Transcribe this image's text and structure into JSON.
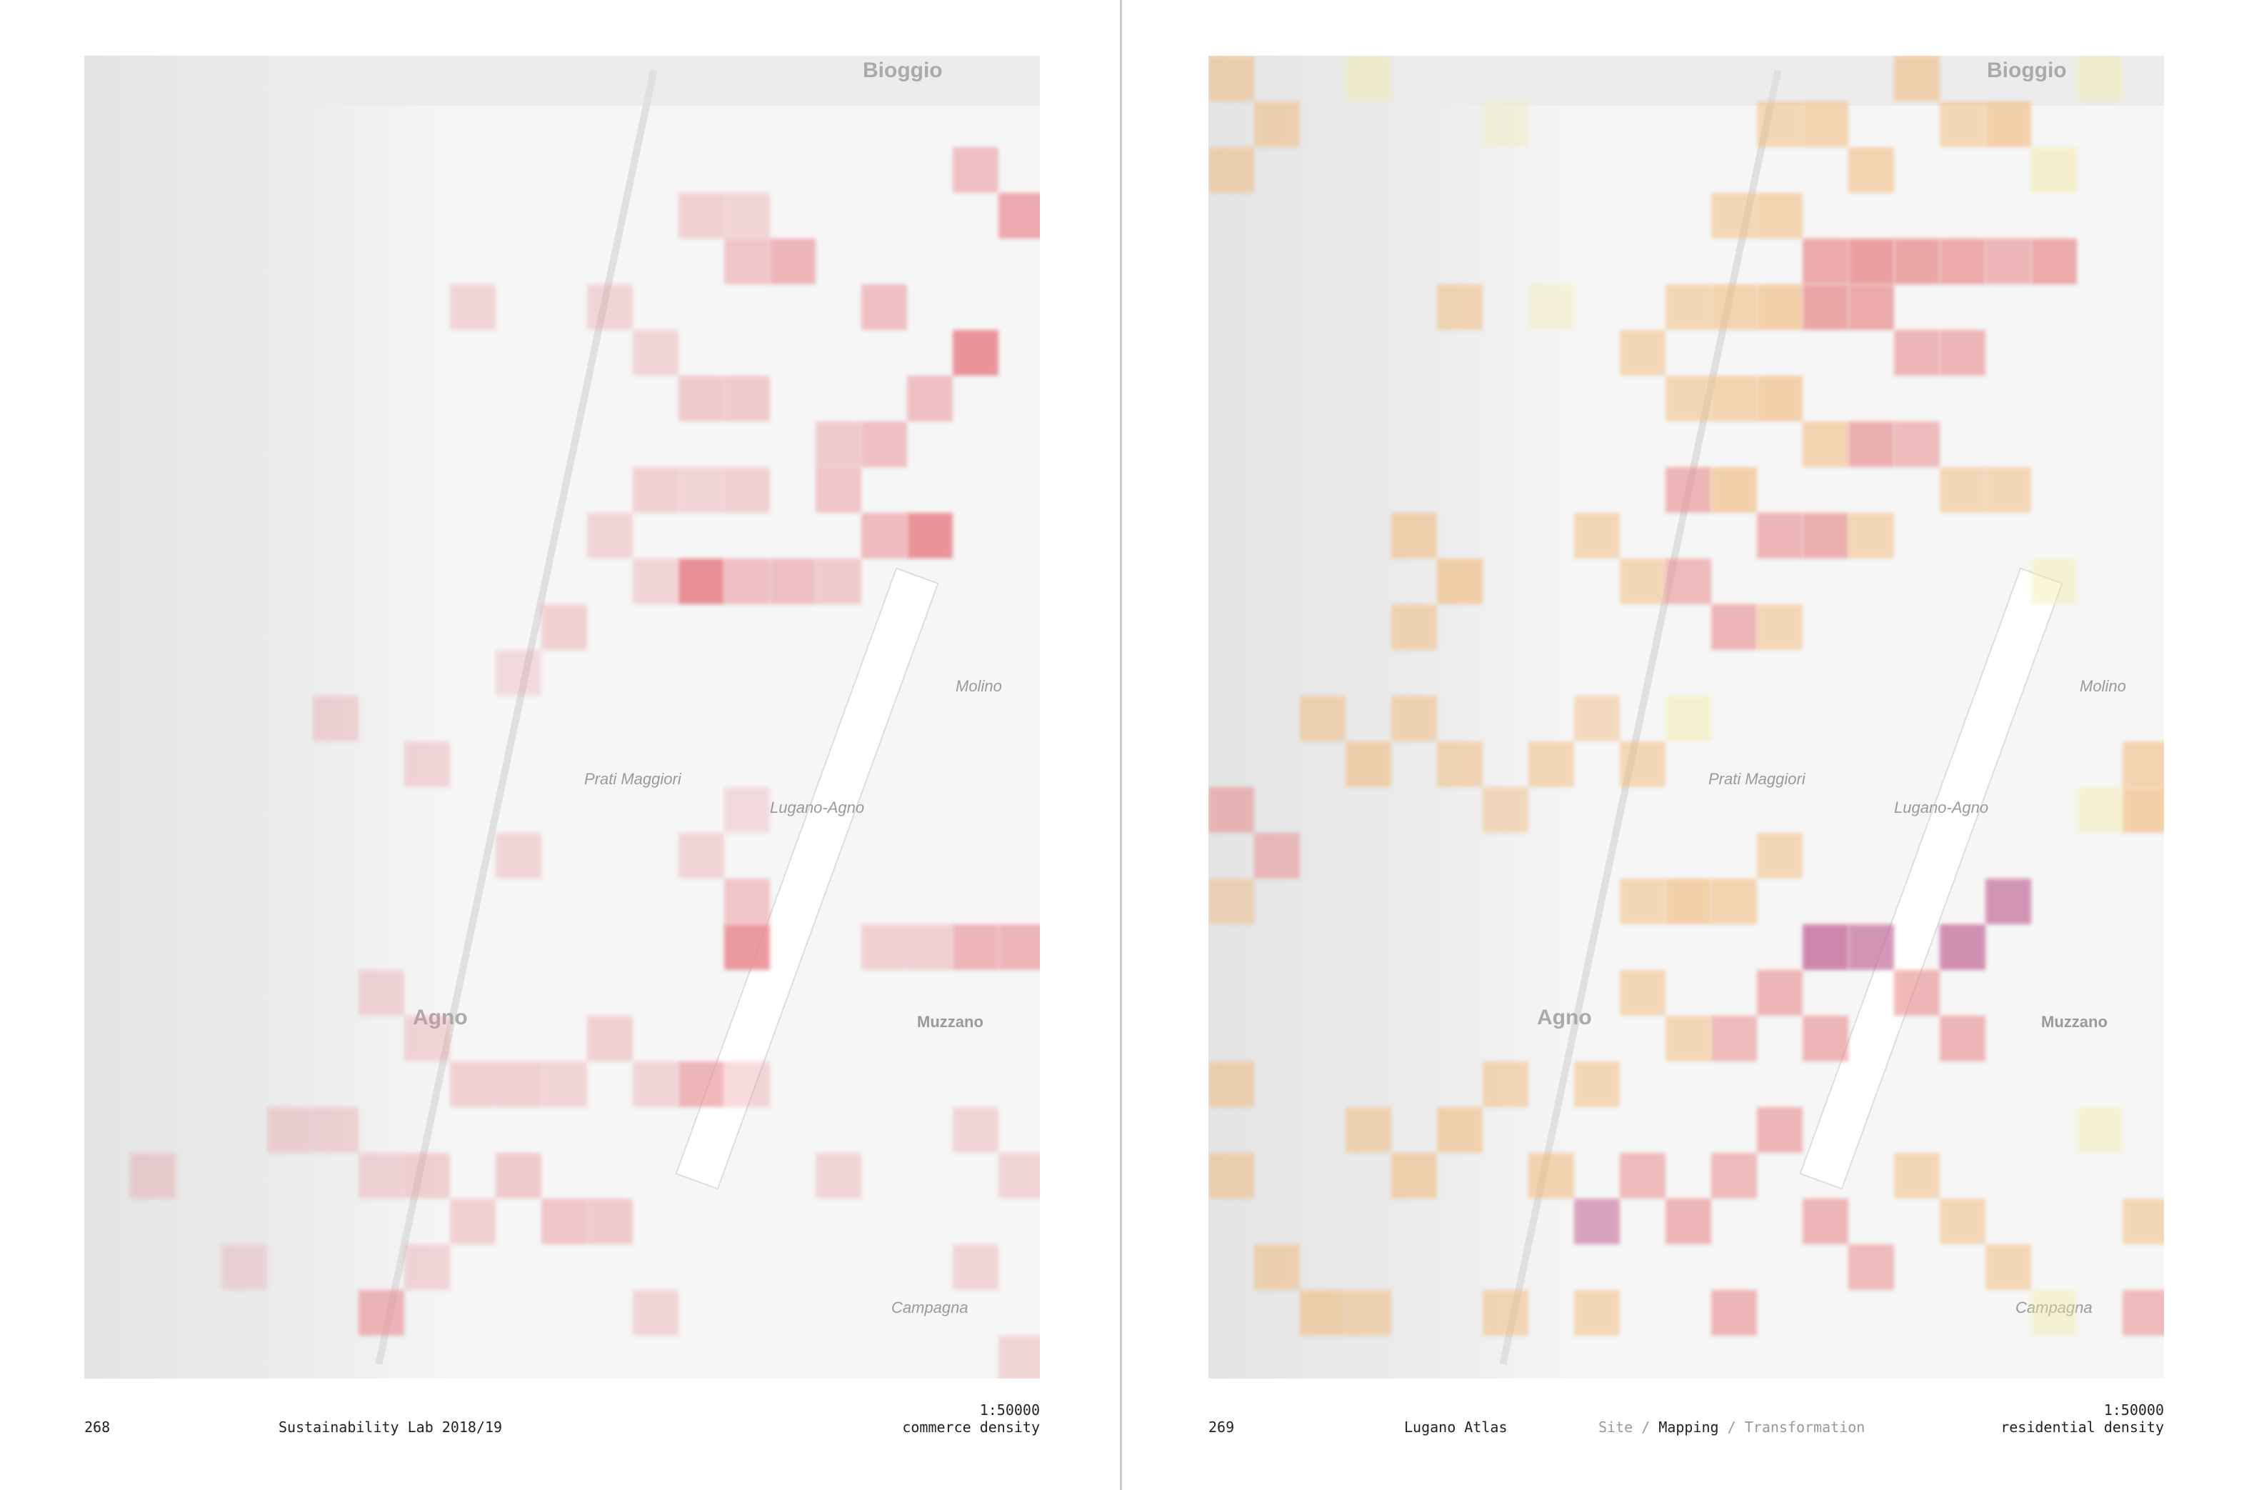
{
  "left_page": {
    "page_number": "268",
    "publication": "Sustainability Lab 2018/19",
    "scale": "1:50000",
    "map_title": "commerce density",
    "heat_color": "#e88a90"
  },
  "right_page": {
    "page_number": "269",
    "publication": "Lugano Atlas",
    "breadcrumb": [
      "Site",
      "Mapping",
      "Transformation"
    ],
    "separator": "/",
    "scale": "1:50000",
    "map_title": "residential density",
    "heat_colors": [
      "#f3eaa0",
      "#f1b878",
      "#e88a8a",
      "#c46c9a"
    ]
  },
  "map_labels": {
    "bioggio": "Bioggio",
    "agno": "Agno",
    "muzzano": "Muzzano",
    "airport": "Lugano-Agno",
    "prati": "Prati Maggiori",
    "molino": "Molino",
    "campagna": "Campagna"
  }
}
